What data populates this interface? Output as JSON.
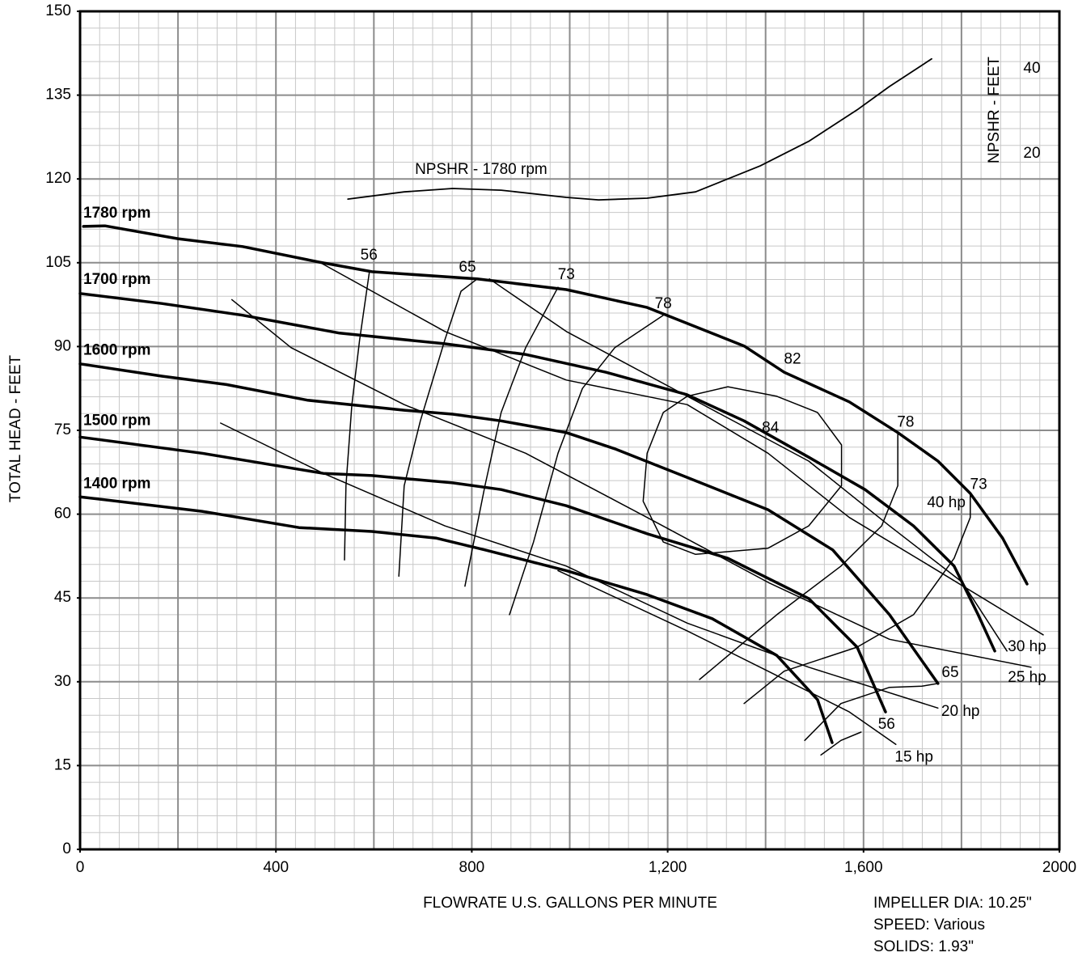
{
  "chart_data": {
    "type": "line",
    "x_label": "FLOWRATE U.S. GALLONS PER MINUTE",
    "y_label": "TOTAL HEAD - FEET",
    "y2_label": "NPSHR - FEET",
    "info": [
      "IMPELLER DIA: 10.25\"",
      "SPEED: Various",
      "SOLIDS: 1.93\""
    ],
    "xlim": [
      0,
      2000
    ],
    "ylim": [
      0,
      150
    ],
    "y2lim": [
      -143.8,
      53.5
    ],
    "xticks": [
      0,
      400,
      800,
      {
        "value": 1200,
        "label": "1,200"
      },
      {
        "value": 1600,
        "label": "1,600"
      },
      2000
    ],
    "yticks": [
      0,
      15,
      30,
      45,
      60,
      75,
      90,
      105,
      120,
      135,
      150
    ],
    "y2ticks": [
      20,
      40
    ],
    "grid": true,
    "xgrid_major": 200,
    "xgrid_minor": 40,
    "ygrid_major": 15,
    "ygrid_minor": 3,
    "color": "#000000",
    "series": [
      {
        "name": "1780 rpm",
        "x": [
          7,
          51,
          200,
          332,
          489,
          596,
          811,
          993,
          1158,
          1356,
          1438,
          1571,
          1670,
          1752,
          1818,
          1884,
          1934
        ],
        "y": [
          111.5,
          111.6,
          109.3,
          107.9,
          105.1,
          103.4,
          102.1,
          100.2,
          97.0,
          90.1,
          85.4,
          80.1,
          74.6,
          69.5,
          63.7,
          55.7,
          47.5
        ],
        "label_y": 113.8
      },
      {
        "name": "1700 rpm",
        "x": [
          0,
          167,
          332,
          530,
          744,
          909,
          1074,
          1239,
          1356,
          1488,
          1603,
          1702,
          1785,
          1834,
          1868
        ],
        "y": [
          99.5,
          97.7,
          95.6,
          92.4,
          90.5,
          88.6,
          85.4,
          81.4,
          76.7,
          70.2,
          64.4,
          57.9,
          50.7,
          42.0,
          35.5
        ],
        "label_y": 101.9
      },
      {
        "name": "1600 rpm",
        "x": [
          0,
          167,
          299,
          464,
          662,
          761,
          860,
          993,
          1092,
          1239,
          1405,
          1537,
          1653,
          1752
        ],
        "y": [
          86.9,
          84.7,
          83.2,
          80.4,
          78.6,
          77.9,
          76.7,
          74.6,
          71.7,
          66.6,
          60.8,
          53.6,
          42.0,
          29.7
        ],
        "label_y": 89.3
      },
      {
        "name": "1500 rpm",
        "x": [
          0,
          249,
          497,
          596,
          761,
          860,
          993,
          1158,
          1323,
          1488,
          1587,
          1645
        ],
        "y": [
          73.8,
          70.9,
          67.3,
          66.9,
          65.6,
          64.4,
          61.5,
          56.5,
          52.1,
          44.9,
          36.2,
          24.6
        ],
        "label_y": 76.7
      },
      {
        "name": "1400 rpm",
        "x": [
          0,
          249,
          447,
          596,
          728,
          827,
          993,
          1158,
          1291,
          1423,
          1506,
          1536
        ],
        "y": [
          63.1,
          60.5,
          57.6,
          56.9,
          55.7,
          53.6,
          49.9,
          45.6,
          41.3,
          34.7,
          26.8,
          19.1
        ],
        "label_y": 65.4
      }
    ],
    "efficiency_curves": [
      {
        "x": [
          591,
          571,
          555,
          543,
          540
        ],
        "y": [
          103.5,
          91.2,
          79.6,
          65.1,
          51.8
        ]
      },
      {
        "x": [
          811,
          778,
          745,
          695,
          662,
          651
        ],
        "y": [
          102.1,
          99.9,
          91.2,
          76.7,
          65.1,
          48.9
        ]
      },
      {
        "x": [
          976,
          910,
          860,
          827,
          786
        ],
        "y": [
          100.6,
          89.8,
          78.2,
          65.1,
          47.1
        ]
      },
      {
        "x": [
          1191,
          1092,
          1026,
          976,
          926,
          877
        ],
        "y": [
          95.6,
          89.8,
          82.5,
          70.9,
          55.0,
          42.0
        ]
      },
      {
        "x": [
          1323,
          1423,
          1506,
          1555,
          1555,
          1488,
          1405,
          1257,
          1191,
          1150,
          1158,
          1191,
          1240,
          1323
        ],
        "y": [
          82.8,
          81.1,
          78.2,
          72.4,
          65.1,
          57.9,
          53.9,
          52.8,
          55.0,
          62.3,
          70.9,
          78.2,
          81.1,
          82.8
        ]
      },
      {
        "x": [
          1670,
          1670,
          1637,
          1554,
          1423,
          1265
        ],
        "y": [
          74.6,
          65.1,
          57.9,
          50.7,
          42.0,
          30.4
        ]
      },
      {
        "x": [
          1818,
          1818,
          1785,
          1702,
          1587,
          1438,
          1356
        ],
        "y": [
          63.7,
          59.4,
          52.1,
          42.0,
          36.2,
          31.9,
          26.1
        ]
      },
      {
        "x": [
          1752,
          1719,
          1653,
          1554,
          1480
        ],
        "y": [
          29.7,
          29.2,
          29.0,
          26.1,
          19.5
        ]
      },
      {
        "x": [
          1595,
          1554,
          1513
        ],
        "y": [
          21.0,
          19.5,
          16.9
        ]
      }
    ],
    "efficiency_labels": [
      {
        "text": "56",
        "x": 590,
        "y": 106.3
      },
      {
        "text": "65",
        "x": 791,
        "y": 104.1
      },
      {
        "text": "73",
        "x": 993,
        "y": 102.8
      },
      {
        "text": "78",
        "x": 1191,
        "y": 97.6
      },
      {
        "text": "82",
        "x": 1455,
        "y": 87.7
      },
      {
        "text": "84",
        "x": 1410,
        "y": 75.4
      },
      {
        "text": "78",
        "x": 1686,
        "y": 76.4
      },
      {
        "text": "73",
        "x": 1835,
        "y": 65.2
      },
      {
        "text": "65",
        "x": 1777,
        "y": 31.6
      },
      {
        "text": "56",
        "x": 1647,
        "y": 22.3
      }
    ],
    "hp_curves": [
      {
        "name": "40 hp",
        "x": [
          836,
          993,
          1240,
          1488,
          1653,
          1802,
          1893
        ],
        "y": [
          102.1,
          92.7,
          81.1,
          69.5,
          57.9,
          47.8,
          35.5
        ],
        "label_x": 1769,
        "label_y": 62.0
      },
      {
        "name": "30 hp",
        "x": [
          489,
          745,
          993,
          1240,
          1405,
          1571,
          1736,
          1967
        ],
        "y": [
          105.1,
          92.7,
          84.0,
          79.6,
          70.9,
          59.4,
          50.7,
          38.4
        ],
        "label_x": 1934,
        "label_y": 36.2
      },
      {
        "name": "25 hp",
        "x": [
          310,
          431,
          662,
          910,
          1158,
          1405,
          1653,
          1942
        ],
        "y": [
          98.4,
          89.8,
          79.6,
          70.9,
          59.4,
          47.8,
          37.6,
          32.6
        ],
        "label_x": 1934,
        "label_y": 30.7
      },
      {
        "name": "20 hp",
        "x": [
          287,
          497,
          745,
          993,
          1240,
          1488,
          1752
        ],
        "y": [
          76.3,
          67.3,
          57.9,
          50.7,
          40.5,
          32.6,
          25.3
        ],
        "label_x": 1798,
        "label_y": 24.6
      },
      {
        "name": "15 hp",
        "x": [
          976,
          1240,
          1405,
          1571,
          1666
        ],
        "y": [
          49.9,
          39.1,
          31.9,
          24.6,
          18.8
        ],
        "label_x": 1703,
        "label_y": 16.4
      }
    ],
    "npshr": {
      "name": "NPSHR - 1780 rpm",
      "axis": "y2",
      "x": [
        547,
        662,
        761,
        860,
        993,
        1059,
        1158,
        1257,
        1389,
        1488,
        1587,
        1653,
        1739
      ],
      "y": [
        9.3,
        11.0,
        11.8,
        11.4,
        9.7,
        9.1,
        9.5,
        11.0,
        17.1,
        22.9,
        30.3,
        35.8,
        42.3
      ],
      "label_x": 819,
      "label_y": 16.2
    }
  }
}
